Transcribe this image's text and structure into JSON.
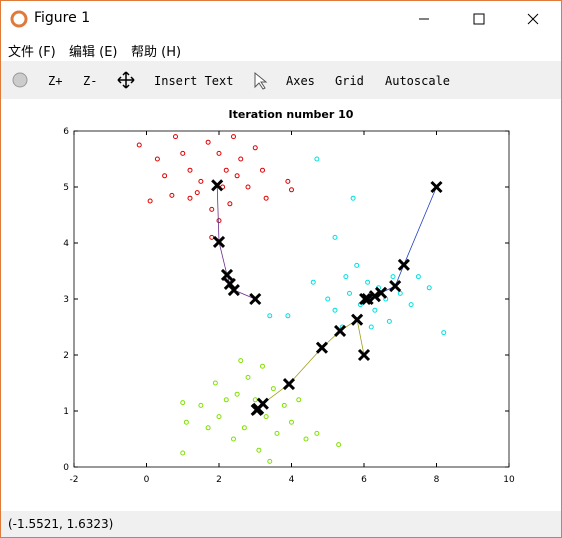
{
  "window": {
    "title": "Figure 1"
  },
  "menu": [
    "文件 (F)",
    "编辑 (E)",
    "帮助 (H)"
  ],
  "toolbar": [
    "Z+",
    "Z-",
    "Insert Text",
    "Axes",
    "Grid",
    "Autoscale"
  ],
  "status": "(-1.5521, 1.6323)",
  "chart_data": {
    "type": "scatter",
    "title": "Iteration number 10",
    "xlim": [
      -2,
      10
    ],
    "ylim": [
      0,
      6
    ],
    "xticks": [
      -2,
      0,
      2,
      4,
      6,
      8,
      10
    ],
    "yticks": [
      0,
      1,
      2,
      3,
      4,
      5,
      6
    ],
    "series": [
      {
        "color": "#e00000",
        "x": [
          -0.2,
          0.3,
          0.5,
          0.1,
          0.7,
          1.0,
          1.2,
          1.4,
          1.5,
          1.7,
          1.8,
          2.0,
          2.1,
          2.2,
          2.3,
          2.5,
          2.6,
          2.8,
          3.0,
          3.2,
          3.3,
          3.9,
          4.0,
          1.8,
          2.0,
          1.2,
          2.4,
          0.8
        ],
        "y": [
          5.75,
          5.5,
          5.2,
          4.75,
          4.85,
          5.6,
          5.3,
          4.9,
          5.1,
          5.8,
          4.6,
          5.6,
          5.0,
          5.3,
          4.7,
          5.2,
          5.5,
          5.0,
          5.7,
          5.3,
          4.8,
          5.1,
          4.95,
          4.1,
          4.4,
          4.8,
          5.9,
          5.9
        ]
      },
      {
        "color": "#00e0e0",
        "x": [
          4.7,
          5.2,
          5.7,
          3.4,
          3.9,
          4.6,
          5.0,
          5.2,
          5.5,
          5.6,
          5.9,
          6.1,
          6.3,
          6.4,
          6.6,
          6.8,
          7.0,
          7.3,
          7.5,
          7.8,
          8.2,
          6.2,
          5.8,
          6.7,
          5.4
        ],
        "y": [
          5.5,
          4.1,
          4.8,
          2.7,
          2.7,
          3.3,
          3.0,
          2.8,
          3.4,
          3.1,
          2.9,
          3.3,
          2.8,
          3.2,
          3.0,
          3.4,
          3.1,
          2.9,
          3.4,
          3.2,
          2.4,
          2.5,
          3.6,
          2.6,
          2.5
        ]
      },
      {
        "color": "#80e000",
        "x": [
          1.0,
          1.0,
          1.1,
          1.5,
          1.7,
          1.9,
          2.0,
          2.2,
          2.4,
          2.5,
          2.7,
          2.8,
          3.0,
          3.1,
          3.2,
          3.3,
          3.5,
          3.6,
          3.8,
          4.0,
          4.2,
          4.4,
          4.7,
          5.3,
          2.6,
          3.4
        ],
        "y": [
          0.25,
          1.15,
          0.8,
          1.1,
          0.7,
          1.5,
          0.9,
          1.2,
          0.5,
          1.3,
          0.7,
          1.6,
          1.2,
          0.3,
          1.8,
          0.9,
          1.4,
          0.6,
          1.1,
          0.8,
          1.2,
          0.5,
          0.6,
          0.4,
          1.9,
          0.1
        ]
      }
    ],
    "paths": [
      {
        "color": "#6a2c8c",
        "x": [
          3,
          2.41,
          2.3,
          2.22,
          2.0,
          1.95
        ],
        "y": [
          3,
          3.16,
          3.27,
          3.43,
          4.02,
          5.03
        ]
      },
      {
        "color": "#a0a020",
        "x": [
          6,
          5.81,
          5.34,
          4.84,
          3.93,
          3.21,
          3.08,
          3.04
        ],
        "y": [
          2,
          2.63,
          2.43,
          2.13,
          1.48,
          1.13,
          1.04,
          1.02
        ]
      },
      {
        "color": "#2040c0",
        "x": [
          8,
          7.1,
          6.86,
          6.47,
          6.3,
          6.1,
          6.03
        ],
        "y": [
          5,
          3.61,
          3.23,
          3.11,
          3.05,
          3.0,
          3.0
        ]
      }
    ]
  }
}
